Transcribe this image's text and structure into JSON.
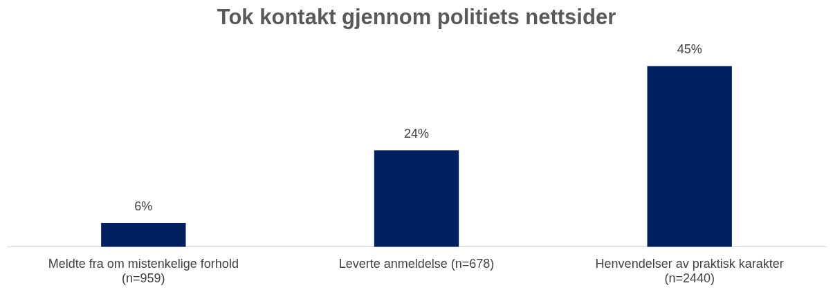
{
  "chart_data": {
    "type": "bar",
    "title": "Tok kontakt gjennom politiets nettsider",
    "categories": [
      "Meldte fra om mistenkelige forhold (n=959)",
      "Leverte anmeldelse (n=678)",
      "Henvendelser av praktisk karakter (n=2440)"
    ],
    "values": [
      6,
      24,
      45
    ],
    "value_labels": [
      "6%",
      "24%",
      "45%"
    ],
    "color": "#002060",
    "grid": false,
    "legend": false
  }
}
